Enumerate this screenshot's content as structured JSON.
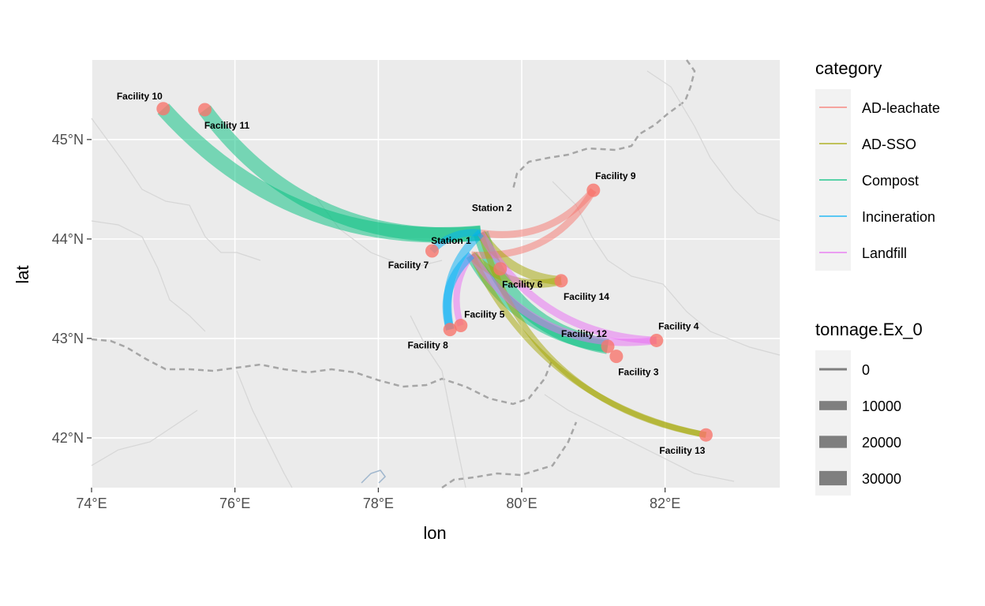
{
  "axes": {
    "x_title": "lon",
    "y_title": "lat",
    "x_ticks": [
      {
        "value": 74,
        "label": "74°E"
      },
      {
        "value": 76,
        "label": "76°E"
      },
      {
        "value": 78,
        "label": "78°E"
      },
      {
        "value": 80,
        "label": "80°E"
      },
      {
        "value": 82,
        "label": "82°E"
      }
    ],
    "y_ticks": [
      {
        "value": 42,
        "label": "42°N"
      },
      {
        "value": 43,
        "label": "43°N"
      },
      {
        "value": 44,
        "label": "44°N"
      },
      {
        "value": 45,
        "label": "45°N"
      }
    ],
    "xlim": [
      74,
      83.6
    ],
    "ylim": [
      41.5,
      45.8
    ]
  },
  "colors": {
    "panel": "#ebebeb",
    "grid": "#ffffff",
    "border": "#a6a6a6",
    "point": "#f8766d",
    "categories": {
      "AD-leachate": "#f8766d",
      "AD-SSO": "#a3a500",
      "Compost": "#00bf7d",
      "Incineration": "#00b0f6",
      "Landfill": "#e76bf3"
    }
  },
  "locations": [
    {
      "name": "Facility 10",
      "lon": 75.0,
      "lat": 45.31
    },
    {
      "name": "Facility 11",
      "lon": 75.58,
      "lat": 45.3
    },
    {
      "name": "Facility 9",
      "lon": 81.0,
      "lat": 44.49
    },
    {
      "name": "Station 2",
      "lon": 79.43,
      "lat": 44.06
    },
    {
      "name": "Station 1",
      "lon": 79.3,
      "lat": 43.84
    },
    {
      "name": "Facility 7",
      "lon": 78.75,
      "lat": 43.88
    },
    {
      "name": "Facility 6",
      "lon": 79.7,
      "lat": 43.7
    },
    {
      "name": "Facility 14",
      "lon": 80.55,
      "lat": 43.58
    },
    {
      "name": "Facility 5",
      "lon": 79.15,
      "lat": 43.13
    },
    {
      "name": "Facility 8",
      "lon": 79.0,
      "lat": 43.09
    },
    {
      "name": "Facility 12",
      "lon": 81.2,
      "lat": 42.92
    },
    {
      "name": "Facility 4",
      "lon": 81.88,
      "lat": 42.98
    },
    {
      "name": "Facility 3",
      "lon": 81.32,
      "lat": 42.82
    },
    {
      "name": "Facility 13",
      "lon": 82.57,
      "lat": 42.03
    }
  ],
  "flows": [
    {
      "from": "Facility 10",
      "to": "Station 2",
      "category": "Compost",
      "tonnage": 35000
    },
    {
      "from": "Facility 11",
      "to": "Station 2",
      "category": "Compost",
      "tonnage": 30000
    },
    {
      "from": "Station 2",
      "to": "Facility 12",
      "category": "Compost",
      "tonnage": 35000
    },
    {
      "from": "Station 1",
      "to": "Facility 12",
      "category": "Compost",
      "tonnage": 20000
    },
    {
      "from": "Station 2",
      "to": "Facility 9",
      "category": "AD-leachate",
      "tonnage": 5000
    },
    {
      "from": "Station 1",
      "to": "Facility 9",
      "category": "AD-leachate",
      "tonnage": 5000
    },
    {
      "from": "Station 2",
      "to": "Facility 14",
      "category": "AD-SSO",
      "tonnage": 10000
    },
    {
      "from": "Station 1",
      "to": "Facility 14",
      "category": "AD-SSO",
      "tonnage": 8000
    },
    {
      "from": "Station 2",
      "to": "Facility 13",
      "category": "AD-SSO",
      "tonnage": 3000
    },
    {
      "from": "Station 1",
      "to": "Facility 13",
      "category": "AD-SSO",
      "tonnage": 3000
    },
    {
      "from": "Station 2",
      "to": "Facility 4",
      "category": "Landfill",
      "tonnage": 6000
    },
    {
      "from": "Station 1",
      "to": "Facility 4",
      "category": "Landfill",
      "tonnage": 6000
    },
    {
      "from": "Station 1",
      "to": "Facility 5",
      "category": "Landfill",
      "tonnage": 4000
    },
    {
      "from": "Station 2",
      "to": "Facility 8",
      "category": "Incineration",
      "tonnage": 8000
    },
    {
      "from": "Station 1",
      "to": "Facility 8",
      "category": "Incineration",
      "tonnage": 8000
    },
    {
      "from": "Station 2",
      "to": "Facility 7",
      "category": "Incineration",
      "tonnage": 5000
    }
  ],
  "legend": {
    "category_title": "category",
    "category_items": [
      "AD-leachate",
      "AD-SSO",
      "Compost",
      "Incineration",
      "Landfill"
    ],
    "size_title": "tonnage.Ex_0",
    "size_items": [
      {
        "label": "0",
        "value": 0
      },
      {
        "label": "10000",
        "value": 10000
      },
      {
        "label": "20000",
        "value": 20000
      },
      {
        "label": "30000",
        "value": 30000
      }
    ]
  }
}
